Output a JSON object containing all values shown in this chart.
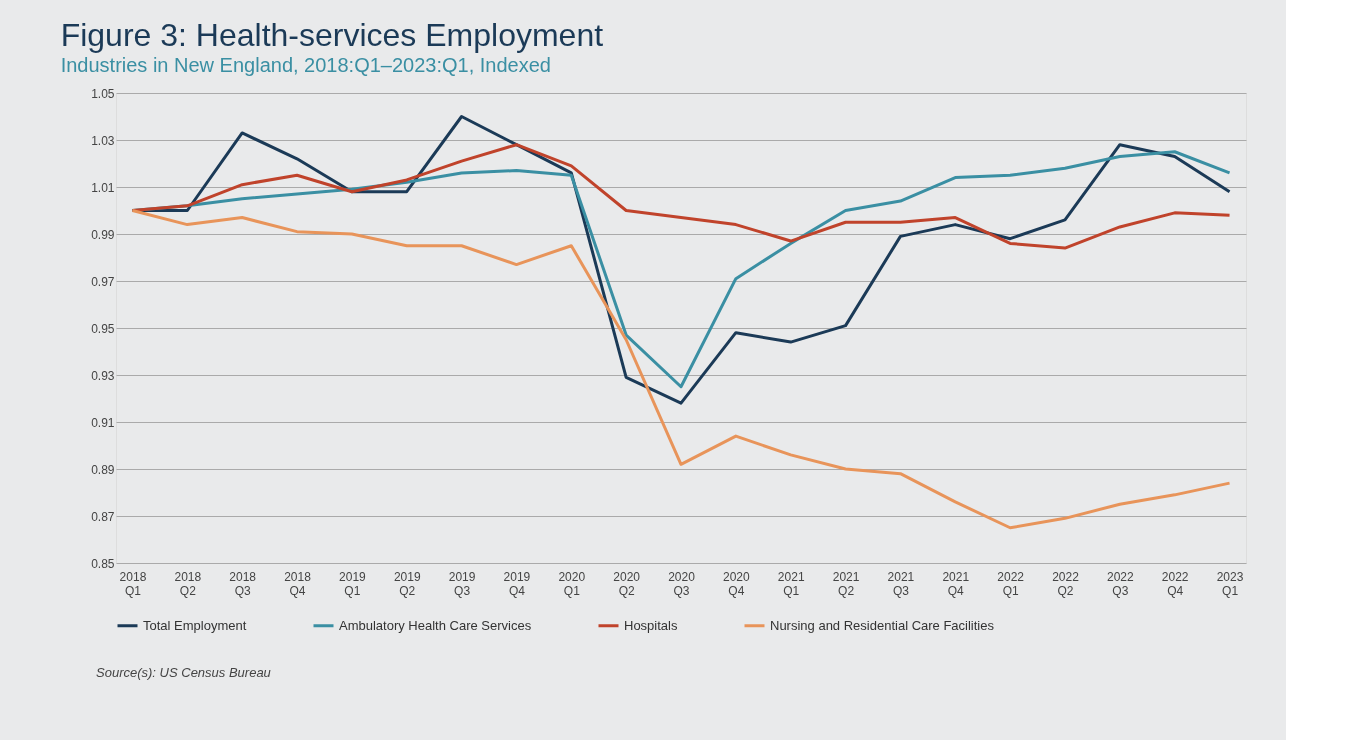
{
  "chart_data": {
    "type": "line",
    "title": "Figure 3: Health-services Employment",
    "subtitle": "Industries in New England, 2018:Q1–2023:Q1, Indexed",
    "categories": [
      "2018 Q1",
      "2018 Q2",
      "2018 Q3",
      "2018 Q4",
      "2019 Q1",
      "2019 Q2",
      "2019 Q3",
      "2019 Q4",
      "2020 Q1",
      "2020 Q2",
      "2020 Q3",
      "2020 Q4",
      "2021 Q1",
      "2021 Q2",
      "2021 Q3",
      "2021 Q4",
      "2022 Q1",
      "2022 Q2",
      "2022 Q3",
      "2022 Q4",
      "2023 Q1"
    ],
    "series": [
      {
        "name": "Total Employment",
        "color": "#1b3a57",
        "values": [
          1.0,
          1.0,
          1.033,
          1.022,
          1.008,
          1.008,
          1.04,
          1.028,
          1.016,
          0.929,
          0.918,
          0.948,
          0.944,
          0.951,
          0.989,
          0.994,
          0.988,
          0.996,
          1.028,
          1.023,
          1.008
        ]
      },
      {
        "name": "Ambulatory Health Care Services",
        "color": "#3a8fa3",
        "values": [
          1.0,
          1.002,
          1.005,
          1.007,
          1.009,
          1.012,
          1.016,
          1.017,
          1.015,
          0.947,
          0.925,
          0.971,
          0.986,
          1.0,
          1.004,
          1.014,
          1.015,
          1.018,
          1.023,
          1.025,
          1.016
        ]
      },
      {
        "name": "Hospitals",
        "color": "#c0432b",
        "values": [
          1.0,
          1.002,
          1.011,
          1.015,
          1.008,
          1.013,
          1.021,
          1.028,
          1.019,
          1.0,
          0.997,
          0.994,
          0.987,
          0.995,
          0.995,
          0.997,
          0.986,
          0.984,
          0.993,
          0.999,
          0.998
        ]
      },
      {
        "name": "Nursing and Residential Care Facilities",
        "color": "#e8945a",
        "values": [
          1.0,
          0.994,
          0.997,
          0.991,
          0.99,
          0.985,
          0.985,
          0.977,
          0.985,
          0.945,
          0.892,
          0.904,
          0.896,
          0.89,
          0.888,
          0.876,
          0.865,
          0.869,
          0.875,
          0.879,
          0.884
        ]
      }
    ],
    "ylim": [
      0.85,
      1.05
    ],
    "yticks": [
      0.85,
      0.87,
      0.89,
      0.91,
      0.93,
      0.95,
      0.97,
      0.99,
      1.01,
      1.03,
      1.05
    ],
    "grid": "y",
    "legend": "bottom",
    "marker": "none",
    "line_style": "solid",
    "annotations": [
      "Source(s): US Census Bureau"
    ]
  }
}
